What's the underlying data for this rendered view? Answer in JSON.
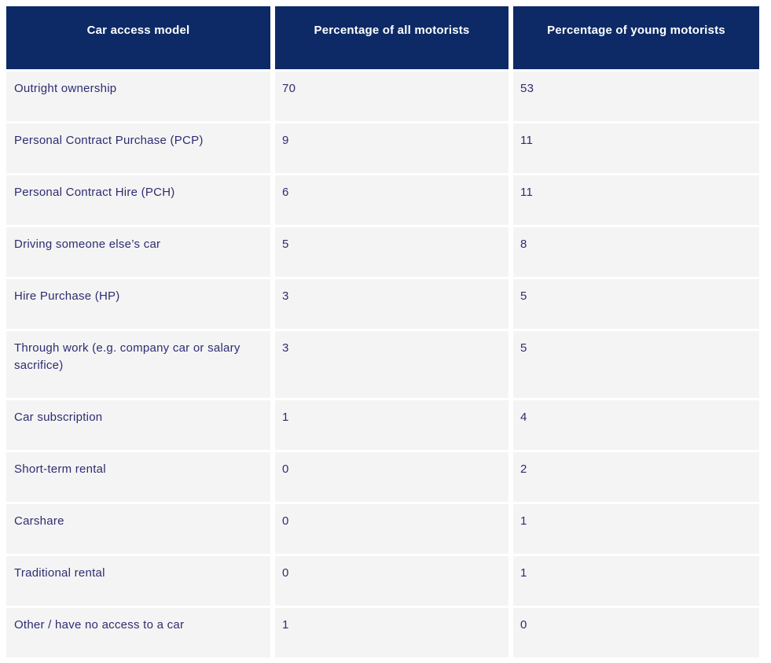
{
  "table": {
    "columns": [
      {
        "label": "Car access model"
      },
      {
        "label": "Percentage of all motorists"
      },
      {
        "label": "Percentage of young motorists"
      }
    ],
    "rows": [
      {
        "model": "Outright ownership",
        "all": "70",
        "young": "53"
      },
      {
        "model": "Personal Contract Purchase (PCP)",
        "all": "9",
        "young": "11"
      },
      {
        "model": "Personal Contract Hire (PCH)",
        "all": "6",
        "young": "11"
      },
      {
        "model": "Driving someone else’s car",
        "all": "5",
        "young": "8"
      },
      {
        "model": "Hire Purchase (HP)",
        "all": "3",
        "young": "5"
      },
      {
        "model": "Through work (e.g. company car or salary sacrifice)",
        "all": "3",
        "young": "5"
      },
      {
        "model": "Car subscription",
        "all": "1",
        "young": "4"
      },
      {
        "model": "Short-term rental",
        "all": "0",
        "young": "2"
      },
      {
        "model": "Carshare",
        "all": "0",
        "young": "1"
      },
      {
        "model": "Traditional rental",
        "all": "0",
        "young": "1"
      },
      {
        "model": "Other / have no access to a car",
        "all": "1",
        "young": "0"
      }
    ]
  },
  "colors": {
    "header_bg": "#0d2a66",
    "header_text": "#ffffff",
    "row_bg": "#f4f4f4",
    "body_text": "#2e2c72",
    "gap": "#ffffff"
  },
  "chart_data": {
    "type": "table",
    "title": "",
    "columns": [
      "Car access model",
      "Percentage of all motorists",
      "Percentage of young motorists"
    ],
    "categories": [
      "Outright ownership",
      "Personal Contract Purchase (PCP)",
      "Personal Contract Hire (PCH)",
      "Driving someone else’s car",
      "Hire Purchase (HP)",
      "Through work (e.g. company car or salary sacrifice)",
      "Car subscription",
      "Short-term rental",
      "Carshare",
      "Traditional rental",
      "Other / have no access to a car"
    ],
    "series": [
      {
        "name": "Percentage of all motorists",
        "values": [
          70,
          9,
          6,
          5,
          3,
          3,
          1,
          0,
          0,
          0,
          1
        ]
      },
      {
        "name": "Percentage of young motorists",
        "values": [
          53,
          11,
          11,
          8,
          5,
          5,
          4,
          2,
          1,
          1,
          0
        ]
      }
    ]
  }
}
